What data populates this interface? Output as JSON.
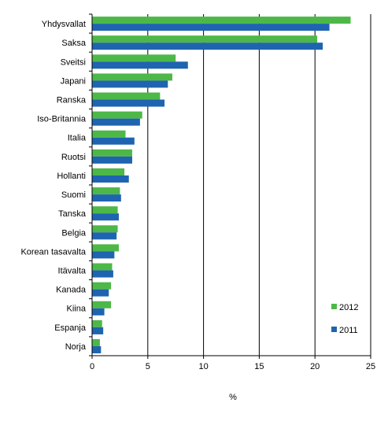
{
  "chart_data": {
    "type": "bar",
    "orientation": "horizontal",
    "categories": [
      "Yhdysvallat",
      "Saksa",
      "Sveitsi",
      "Japani",
      "Ranska",
      "Iso-Britannia",
      "Italia",
      "Ruotsi",
      "Hollanti",
      "Suomi",
      "Tanska",
      "Belgia",
      "Korean tasavalta",
      "Itävalta",
      "Kanada",
      "Kiina",
      "Espanja",
      "Norja"
    ],
    "series": [
      {
        "name": "2012",
        "color": "#4db848",
        "values": [
          23.2,
          20.2,
          7.5,
          7.2,
          6.1,
          4.5,
          3.0,
          3.6,
          2.9,
          2.5,
          2.3,
          2.3,
          2.4,
          1.8,
          1.7,
          1.7,
          0.9,
          0.7
        ]
      },
      {
        "name": "2011",
        "color": "#1f64b0",
        "values": [
          21.3,
          20.7,
          8.6,
          6.8,
          6.5,
          4.3,
          3.8,
          3.6,
          3.3,
          2.6,
          2.4,
          2.2,
          2.0,
          1.9,
          1.5,
          1.1,
          1.0,
          0.8
        ]
      }
    ],
    "xlim": [
      0,
      25
    ],
    "xticks": [
      "0",
      "5",
      "10",
      "15",
      "20",
      "25"
    ],
    "xlabel": "%",
    "ylabel": "",
    "title": "",
    "grid": "vertical",
    "legend_position": "bottom-right"
  }
}
